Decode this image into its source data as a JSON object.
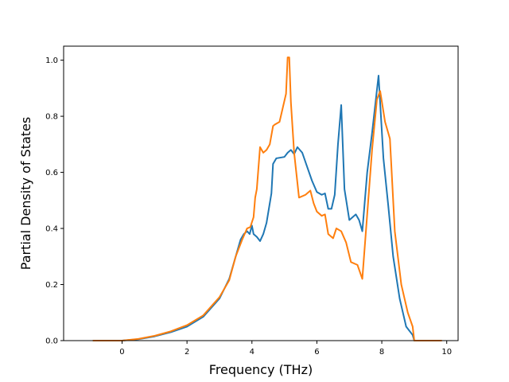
{
  "chart_data": {
    "type": "line",
    "title": "",
    "xlabel": "Frequency (THz)",
    "ylabel": "Partial Density of States",
    "xlim": [
      -1.8,
      10.35
    ],
    "ylim": [
      0.0,
      1.05
    ],
    "xticks": [
      0,
      2,
      4,
      6,
      8,
      10
    ],
    "xtick_labels": [
      "0",
      "2",
      "4",
      "6",
      "8",
      "10"
    ],
    "yticks": [
      0.0,
      0.2,
      0.4,
      0.6,
      0.8,
      1.0
    ],
    "ytick_labels": [
      "0.0",
      "0.2",
      "0.4",
      "0.6",
      "0.8",
      "1.0"
    ],
    "grid": false,
    "legend": "none",
    "series": [
      {
        "color": "#1f77b4",
        "x": [
          -0.9,
          0.0,
          0.5,
          1.0,
          1.5,
          2.0,
          2.5,
          3.0,
          3.3,
          3.5,
          3.65,
          3.75,
          3.85,
          3.93,
          4.0,
          4.05,
          4.15,
          4.25,
          4.35,
          4.45,
          4.55,
          4.6,
          4.65,
          4.75,
          5.0,
          5.1,
          5.2,
          5.3,
          5.4,
          5.55,
          5.7,
          5.85,
          6.0,
          6.15,
          6.25,
          6.35,
          6.45,
          6.55,
          6.65,
          6.75,
          6.85,
          7.0,
          7.2,
          7.3,
          7.4,
          7.55,
          7.7,
          7.9,
          8.05,
          8.2,
          8.35,
          8.55,
          8.75,
          8.95,
          9.0,
          9.8
        ],
        "y": [
          0.0,
          0.0,
          0.005,
          0.015,
          0.03,
          0.05,
          0.085,
          0.15,
          0.22,
          0.3,
          0.36,
          0.38,
          0.39,
          0.38,
          0.41,
          0.38,
          0.37,
          0.355,
          0.38,
          0.42,
          0.49,
          0.525,
          0.63,
          0.65,
          0.655,
          0.67,
          0.68,
          0.665,
          0.69,
          0.67,
          0.62,
          0.57,
          0.53,
          0.52,
          0.525,
          0.47,
          0.47,
          0.52,
          0.7,
          0.84,
          0.54,
          0.43,
          0.45,
          0.43,
          0.39,
          0.6,
          0.74,
          0.945,
          0.65,
          0.48,
          0.3,
          0.15,
          0.05,
          0.02,
          0.0,
          0.0
        ]
      },
      {
        "color": "#ff7f0e",
        "x": [
          -0.9,
          0.0,
          0.5,
          1.0,
          1.5,
          2.0,
          2.5,
          3.0,
          3.3,
          3.5,
          3.7,
          3.85,
          3.95,
          4.05,
          4.1,
          4.15,
          4.25,
          4.35,
          4.45,
          4.55,
          4.65,
          4.7,
          4.85,
          4.95,
          5.05,
          5.1,
          5.15,
          5.2,
          5.3,
          5.45,
          5.65,
          5.8,
          5.9,
          6.0,
          6.15,
          6.25,
          6.35,
          6.5,
          6.6,
          6.75,
          6.9,
          7.05,
          7.25,
          7.4,
          7.55,
          7.7,
          7.85,
          7.95,
          8.1,
          8.25,
          8.4,
          8.6,
          8.8,
          8.95,
          9.0,
          9.85
        ],
        "y": [
          0.0,
          0.0,
          0.006,
          0.017,
          0.033,
          0.055,
          0.09,
          0.155,
          0.215,
          0.3,
          0.36,
          0.4,
          0.405,
          0.44,
          0.51,
          0.54,
          0.69,
          0.67,
          0.68,
          0.7,
          0.765,
          0.77,
          0.78,
          0.83,
          0.88,
          1.01,
          1.01,
          0.85,
          0.67,
          0.51,
          0.52,
          0.535,
          0.49,
          0.46,
          0.445,
          0.45,
          0.38,
          0.365,
          0.4,
          0.39,
          0.35,
          0.28,
          0.27,
          0.22,
          0.45,
          0.68,
          0.86,
          0.89,
          0.78,
          0.72,
          0.39,
          0.2,
          0.1,
          0.05,
          0.0,
          0.0
        ]
      }
    ]
  }
}
